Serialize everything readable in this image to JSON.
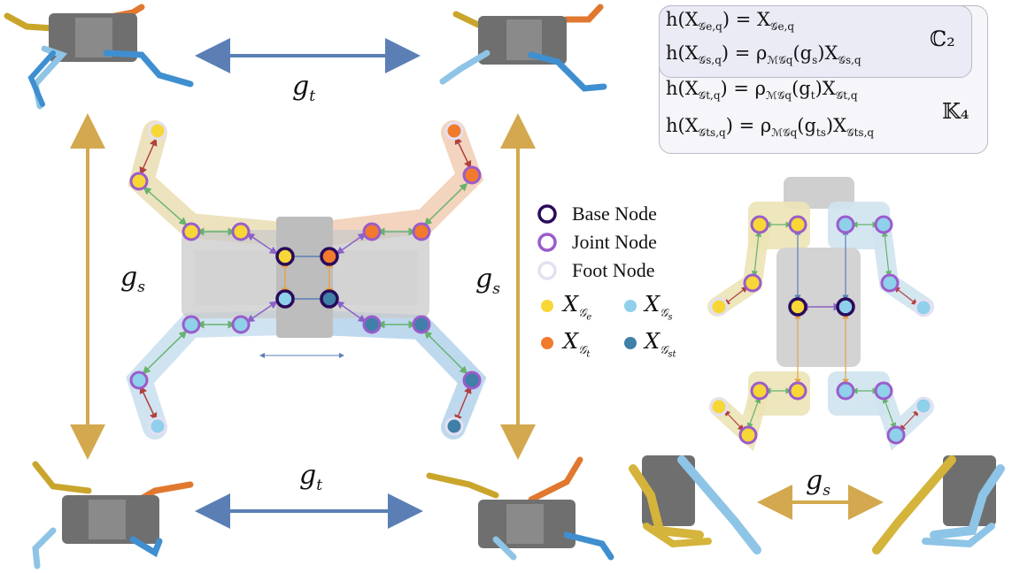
{
  "symmetry_labels": {
    "g_t": "g",
    "g_t_sub": "t",
    "g_s": "g",
    "g_s_sub": "s"
  },
  "legend": {
    "base_node": "Base Node",
    "joint_node": "Joint Node",
    "foot_node": "Foot Node",
    "x_symbol": "X",
    "ge_sub": "𝒢",
    "ge_subsub": "e",
    "gs_sub": "𝒢",
    "gs_subsub": "s",
    "gt_sub": "𝒢",
    "gt_subsub": "t",
    "gst_sub": "𝒢",
    "gst_subsub": "st"
  },
  "equations": {
    "c2_label": "ℂ₂",
    "k4_label": "𝕂₄",
    "eq1_lhs": "h(X",
    "eq1_lhs_sub": "𝒢e,q",
    "eq1_rhs": ") = X",
    "eq1_rhs_sub": "𝒢e,q",
    "eq2_lhs": "h(X",
    "eq2_lhs_sub": "𝒢s,q",
    "eq2_rhs": ") = ρ",
    "eq2_rho_sub": "ℳ𝒢q",
    "eq2_arg": "(g",
    "eq2_arg_sub": "s",
    "eq2_tail": ")X",
    "eq2_tail_sub": "𝒢s,q",
    "eq3_lhs": "h(X",
    "eq3_lhs_sub": "𝒢t,q",
    "eq3_rhs": ") = ρ",
    "eq3_rho_sub": "ℳ𝒢q",
    "eq3_arg": "(g",
    "eq3_arg_sub": "t",
    "eq3_tail": ")X",
    "eq3_tail_sub": "𝒢t,q",
    "eq4_lhs": "h(X",
    "eq4_lhs_sub": "𝒢ts,q",
    "eq4_rhs": ") = ρ",
    "eq4_rho_sub": "ℳ𝒢q",
    "eq4_arg": "(g",
    "eq4_arg_sub": "ts",
    "eq4_tail": ")X",
    "eq4_tail_sub": "𝒢ts,q"
  },
  "colors": {
    "yellow_node": "#f7d736",
    "orange_node": "#f27a2d",
    "light_blue_node": "#8fd0ea",
    "dark_blue_node": "#3f7fa8",
    "base_ring": "#2a0a5a",
    "joint_ring": "#9b5ccb",
    "foot_ring": "#e4e0f2",
    "arrow_blue": "#5b7fb5",
    "arrow_gold": "#d3a84e",
    "robot_gray": "#6f6f6f",
    "leg_yellow": "#d4b43a",
    "leg_orange": "#e2793a",
    "leg_lightblue": "#8ec4e6",
    "leg_blue": "#3f8fd0"
  }
}
